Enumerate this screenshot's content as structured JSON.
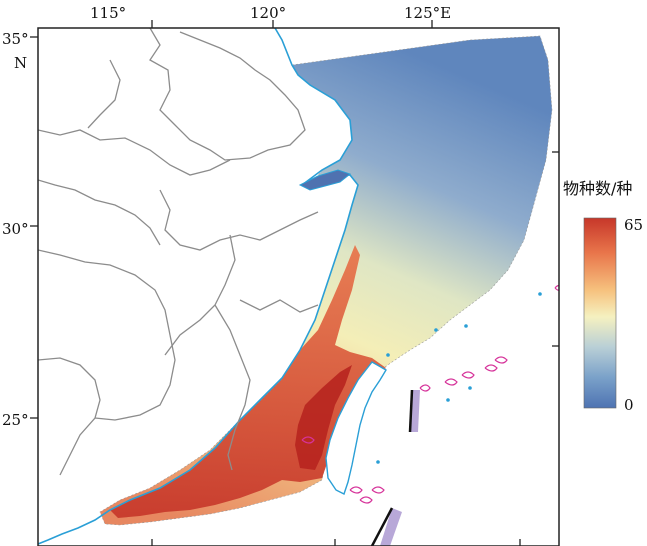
{
  "map": {
    "x_ticks": [
      {
        "label": "115°"
      },
      {
        "label": "120°"
      },
      {
        "label": "125°E"
      }
    ],
    "y_ticks": [
      {
        "label": "35°"
      },
      {
        "label": "30°"
      },
      {
        "label": "25°"
      }
    ],
    "north_label": "N"
  },
  "legend": {
    "title": "物种数/种",
    "max_label": "65",
    "min_label": "0",
    "colors": [
      "#c6372a",
      "#e8744a",
      "#f6c17e",
      "#f5f1c0",
      "#b9cfd6",
      "#7aa1c9",
      "#4e73b2"
    ]
  },
  "colors": {
    "coastline": "#2a9fd6",
    "province_border": "#8c8c8c",
    "frame": "#222222",
    "island_outline": "#d6339a",
    "boundary_line": "#111111",
    "boundary_band": "#b8a8d8"
  }
}
